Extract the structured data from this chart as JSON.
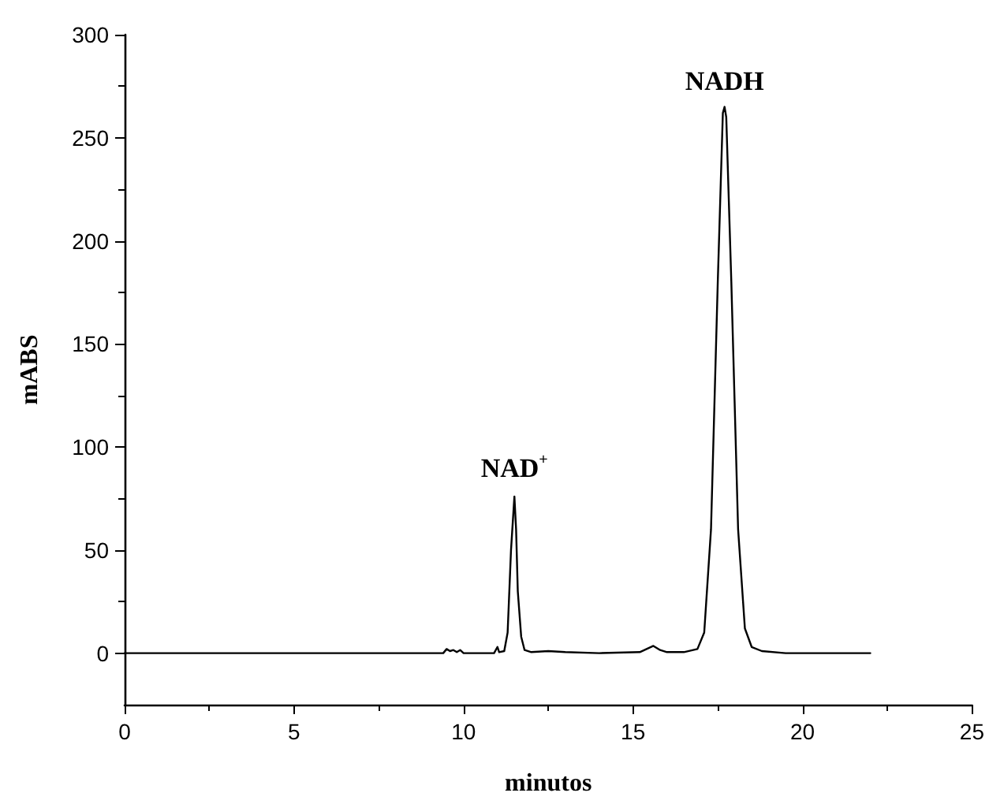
{
  "chart_data": {
    "type": "line",
    "xlabel": "minutos",
    "ylabel": "mABS",
    "x": [
      0,
      9.4,
      9.5,
      9.6,
      9.7,
      9.8,
      9.9,
      10.0,
      10.9,
      11.0,
      11.05,
      11.2,
      11.3,
      11.4,
      11.5,
      11.55,
      11.6,
      11.7,
      11.8,
      12.0,
      12.5,
      13,
      14,
      15.2,
      15.4,
      15.6,
      15.8,
      16.0,
      16.5,
      16.9,
      17.1,
      17.3,
      17.5,
      17.65,
      17.7,
      17.75,
      17.9,
      18.1,
      18.3,
      18.5,
      18.8,
      19.5,
      22
    ],
    "series": [
      {
        "color": "#000000",
        "values": [
          0,
          0,
          2,
          1,
          1.5,
          0.5,
          1.5,
          0,
          0,
          3,
          0.5,
          1,
          10,
          50,
          76,
          60,
          30,
          8,
          1.5,
          0.5,
          1,
          0.5,
          0,
          0.5,
          2,
          3.5,
          1.5,
          0.5,
          0.5,
          2,
          10,
          60,
          180,
          262,
          265,
          260,
          180,
          60,
          12,
          3,
          1,
          0,
          0
        ]
      }
    ],
    "xlim": [
      0,
      25
    ],
    "xticks": [
      0,
      5,
      10,
      15,
      20,
      25
    ],
    "ylim": [
      -25,
      300
    ],
    "yticks": [
      0,
      50,
      100,
      150,
      200,
      250,
      300
    ],
    "annotations": [
      {
        "text": "NAD$^{+}$",
        "x": 11.5,
        "y": 76
      },
      {
        "text": "NADH",
        "x": 17.7,
        "y": 265
      }
    ],
    "marker": "none",
    "line_style": "solid"
  }
}
